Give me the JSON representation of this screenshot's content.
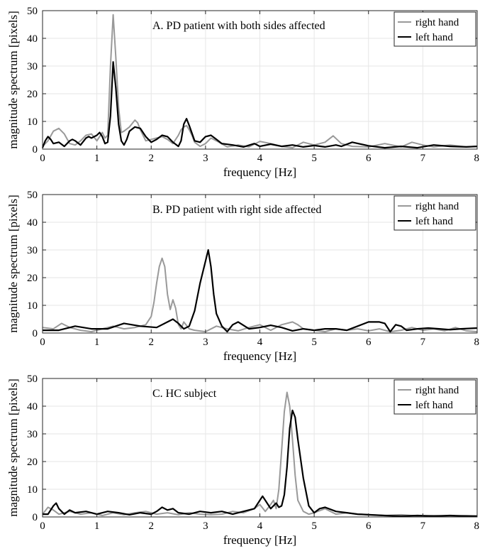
{
  "chart_data": [
    {
      "type": "line",
      "title": "A. PD patient with both sides affected",
      "xlabel": "frequency [Hz]",
      "ylabel": "magnitude spectrum [pixels]",
      "xlim": [
        0,
        8
      ],
      "ylim": [
        0,
        50
      ],
      "xticks": [
        "0",
        "1",
        "2",
        "3",
        "4",
        "5",
        "6",
        "7",
        "8"
      ],
      "yticks": [
        "0",
        "10",
        "20",
        "30",
        "40",
        "50"
      ],
      "grid": true,
      "legend": "top-right",
      "series": [
        {
          "name": "right hand",
          "color": "#999999",
          "x": [
            0,
            0.1,
            0.2,
            0.3,
            0.4,
            0.5,
            0.6,
            0.7,
            0.8,
            0.9,
            1.0,
            1.05,
            1.1,
            1.15,
            1.2,
            1.25,
            1.3,
            1.35,
            1.4,
            1.45,
            1.5,
            1.6,
            1.7,
            1.75,
            1.8,
            1.9,
            2.0,
            2.1,
            2.2,
            2.3,
            2.4,
            2.5,
            2.55,
            2.6,
            2.65,
            2.7,
            2.75,
            2.8,
            2.9,
            3.0,
            3.1,
            3.2,
            3.4,
            3.6,
            3.8,
            4.0,
            4.2,
            4.4,
            4.6,
            4.8,
            5.0,
            5.2,
            5.35,
            5.5,
            5.7,
            6.0,
            6.3,
            6.6,
            6.8,
            7.0,
            7.2,
            7.5,
            7.8,
            8.0
          ],
          "y": [
            1,
            3,
            6.5,
            7.5,
            5.5,
            2,
            1.5,
            3,
            5,
            5.5,
            3,
            4.5,
            6,
            4,
            5,
            30,
            48.5,
            33,
            15,
            6,
            6.5,
            8,
            10.5,
            9.5,
            7,
            3,
            3.5,
            4,
            4.5,
            3.5,
            2,
            5,
            7,
            8,
            8.5,
            7,
            5,
            2.5,
            1,
            2,
            4,
            3,
            0.8,
            1.5,
            0.8,
            2.8,
            2,
            1,
            0.5,
            2.5,
            1.5,
            2.5,
            4.8,
            2,
            1,
            0.8,
            2,
            0.8,
            2.5,
            1.5,
            0.8,
            1.5,
            0.8,
            1
          ],
          "points": 64
        },
        {
          "name": "left hand",
          "color": "#000000",
          "x": [
            0,
            0.05,
            0.1,
            0.15,
            0.2,
            0.3,
            0.4,
            0.5,
            0.55,
            0.6,
            0.7,
            0.8,
            0.85,
            0.9,
            1.0,
            1.05,
            1.1,
            1.15,
            1.2,
            1.25,
            1.3,
            1.35,
            1.4,
            1.45,
            1.5,
            1.55,
            1.6,
            1.7,
            1.8,
            1.9,
            2.0,
            2.1,
            2.2,
            2.3,
            2.4,
            2.5,
            2.55,
            2.6,
            2.65,
            2.7,
            2.8,
            2.9,
            3.0,
            3.1,
            3.2,
            3.3,
            3.5,
            3.7,
            3.9,
            4.0,
            4.2,
            4.4,
            4.6,
            4.8,
            5.0,
            5.2,
            5.4,
            5.5,
            5.7,
            6.0,
            6.3,
            6.6,
            6.9,
            7.2,
            7.5,
            7.8,
            8.0
          ],
          "y": [
            0.5,
            3,
            4.5,
            3.5,
            2,
            2.5,
            1,
            3,
            3.5,
            3,
            1.5,
            4,
            4.5,
            4,
            5,
            6,
            4.5,
            2,
            2.5,
            12,
            31.5,
            22,
            9,
            3,
            1.5,
            3.5,
            6.5,
            8,
            7.5,
            4.5,
            2.5,
            3.5,
            5,
            4.5,
            2.5,
            1,
            3,
            9,
            11,
            8.5,
            3,
            2.5,
            4.5,
            5,
            3.5,
            2,
            1.5,
            0.8,
            2,
            1,
            1.8,
            1,
            1.5,
            0.8,
            1.3,
            0.8,
            1.5,
            1,
            2.5,
            1.2,
            0.5,
            1,
            0.5,
            1.5,
            1,
            0.8,
            1
          ],
          "points": 67
        }
      ]
    },
    {
      "type": "line",
      "title": "B. PD patient with right side affected",
      "xlabel": "frequency [Hz]",
      "ylabel": "magnitude spectrum [pixels]",
      "xlim": [
        0,
        8
      ],
      "ylim": [
        0,
        50
      ],
      "xticks": [
        "0",
        "1",
        "2",
        "3",
        "4",
        "5",
        "6",
        "7",
        "8"
      ],
      "yticks": [
        "0",
        "10",
        "20",
        "30",
        "40",
        "50"
      ],
      "grid": true,
      "legend": "top-right",
      "series": [
        {
          "name": "right hand",
          "color": "#999999",
          "x": [
            0,
            0.2,
            0.35,
            0.5,
            0.7,
            0.9,
            1.1,
            1.3,
            1.5,
            1.7,
            1.9,
            2.0,
            2.05,
            2.1,
            2.15,
            2.2,
            2.25,
            2.3,
            2.35,
            2.4,
            2.45,
            2.5,
            2.55,
            2.6,
            2.7,
            2.8,
            3.0,
            3.2,
            3.4,
            3.6,
            3.8,
            4.0,
            4.2,
            4.4,
            4.6,
            4.7,
            4.8,
            5.0,
            5.2,
            5.4,
            5.6,
            5.8,
            6.0,
            6.2,
            6.4,
            6.6,
            6.8,
            7.0,
            7.2,
            7.4,
            7.6,
            7.8,
            8.0
          ],
          "y": [
            2,
            1.5,
            3.5,
            2,
            1,
            0.5,
            1.5,
            2.5,
            1.5,
            2,
            3,
            6,
            11,
            18,
            24,
            27,
            24,
            14,
            8.5,
            12,
            9,
            3,
            1.5,
            4,
            1.5,
            1,
            0.5,
            2.5,
            1.5,
            0.8,
            2,
            3,
            1,
            3,
            4,
            3,
            1.5,
            1,
            0.5,
            1.5,
            1,
            1.5,
            0.8,
            1.5,
            0.5,
            1,
            2,
            1,
            1.5,
            0.8,
            2,
            0.8,
            0.5
          ],
          "points": 53
        },
        {
          "name": "left hand",
          "color": "#000000",
          "x": [
            0,
            0.3,
            0.6,
            0.9,
            1.2,
            1.5,
            1.8,
            2.1,
            2.3,
            2.4,
            2.5,
            2.6,
            2.7,
            2.8,
            2.9,
            3.0,
            3.05,
            3.1,
            3.15,
            3.2,
            3.3,
            3.4,
            3.5,
            3.6,
            3.8,
            4.0,
            4.2,
            4.4,
            4.6,
            4.8,
            5.0,
            5.2,
            5.4,
            5.6,
            5.8,
            6.0,
            6.2,
            6.3,
            6.4,
            6.5,
            6.6,
            6.7,
            6.9,
            7.1,
            7.3,
            7.5,
            7.7,
            8.0
          ],
          "y": [
            1,
            1,
            2.5,
            1.5,
            1.5,
            3.5,
            2.5,
            2,
            4,
            5,
            3.5,
            1.5,
            2.5,
            8,
            18,
            26,
            30,
            24,
            14,
            7,
            2.5,
            0.5,
            3,
            4,
            1.5,
            2,
            2.8,
            2,
            0.8,
            1.5,
            1,
            1.5,
            1.5,
            1,
            2.5,
            4,
            4,
            3.5,
            0.5,
            3,
            2.5,
            1,
            1.5,
            1.8,
            1.5,
            1.2,
            1.5,
            1.8
          ],
          "points": 48
        }
      ]
    },
    {
      "type": "line",
      "title": "C. HC subject",
      "xlabel": "frequency [Hz]",
      "ylabel": "magnitude spectrum [pixels]",
      "xlim": [
        0,
        8
      ],
      "ylim": [
        0,
        50
      ],
      "xticks": [
        "0",
        "1",
        "2",
        "3",
        "4",
        "5",
        "6",
        "7",
        "8"
      ],
      "yticks": [
        "0",
        "10",
        "20",
        "30",
        "40",
        "50"
      ],
      "grid": true,
      "legend": "top-right",
      "series": [
        {
          "name": "right hand",
          "color": "#999999",
          "x": [
            0,
            0.1,
            0.2,
            0.3,
            0.5,
            0.7,
            0.9,
            1.1,
            1.3,
            1.5,
            1.7,
            1.9,
            2.1,
            2.3,
            2.5,
            2.7,
            2.9,
            3.1,
            3.3,
            3.5,
            3.7,
            3.9,
            4.0,
            4.1,
            4.2,
            4.25,
            4.3,
            4.35,
            4.4,
            4.45,
            4.5,
            4.55,
            4.6,
            4.65,
            4.7,
            4.8,
            4.9,
            5.0,
            5.2,
            5.4,
            5.6,
            5.8,
            6.0,
            6.3,
            6.6,
            6.9,
            7.2,
            7.5,
            7.8,
            8.0
          ],
          "y": [
            1,
            3.5,
            2.5,
            1,
            2,
            1,
            1.5,
            0.5,
            1.5,
            0.8,
            1.5,
            2,
            1,
            1.5,
            0.8,
            1.5,
            1,
            0.8,
            1,
            2,
            1.5,
            3,
            4.5,
            2,
            4.5,
            6,
            3,
            10,
            24,
            38,
            45,
            40,
            28,
            15,
            6,
            2,
            1,
            1.5,
            3,
            1,
            1.5,
            1,
            0.8,
            0.5,
            0.8,
            0.3,
            0.5,
            0.3,
            0.5,
            0.3
          ],
          "points": 50
        },
        {
          "name": "left hand",
          "color": "#000000",
          "x": [
            0,
            0.1,
            0.2,
            0.25,
            0.3,
            0.4,
            0.5,
            0.6,
            0.8,
            1.0,
            1.2,
            1.4,
            1.6,
            1.8,
            2.0,
            2.1,
            2.2,
            2.3,
            2.4,
            2.5,
            2.7,
            2.9,
            3.1,
            3.3,
            3.5,
            3.7,
            3.9,
            4.0,
            4.05,
            4.1,
            4.2,
            4.3,
            4.35,
            4.4,
            4.45,
            4.5,
            4.55,
            4.6,
            4.65,
            4.7,
            4.8,
            4.9,
            5.0,
            5.1,
            5.2,
            5.4,
            5.6,
            5.8,
            6.0,
            6.3,
            6.6,
            6.9,
            7.2,
            7.5,
            7.8,
            8.0
          ],
          "y": [
            1,
            1,
            4,
            5,
            3,
            1,
            2.5,
            1.5,
            2,
            1,
            2,
            1.5,
            0.8,
            1.5,
            1,
            2,
            3.5,
            2.5,
            3,
            1.5,
            1,
            2,
            1.5,
            2,
            1,
            2,
            3,
            6,
            7.5,
            6,
            3,
            5,
            3.5,
            4,
            8,
            18,
            32,
            38.5,
            36,
            28,
            14,
            4,
            1.5,
            3,
            3.5,
            2,
            1.5,
            1,
            0.8,
            0.5,
            0.3,
            0.5,
            0.3,
            0.5,
            0.3,
            0.3
          ],
          "points": 56
        }
      ]
    }
  ]
}
